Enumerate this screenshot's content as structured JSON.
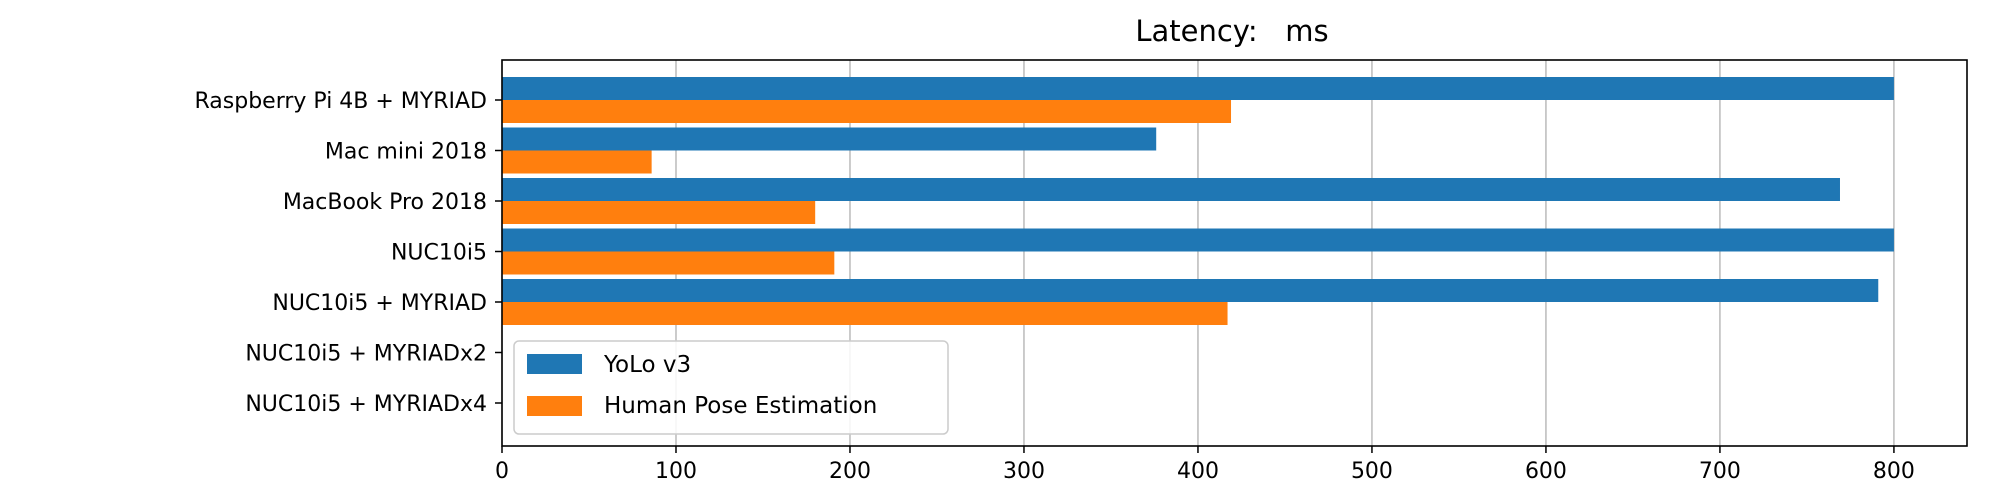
{
  "chart_data": {
    "type": "bar",
    "orientation": "horizontal",
    "title": "Latency:   ms",
    "xlabel": "",
    "ylabel": "",
    "categories": [
      "Raspberry Pi 4B + MYRIAD",
      "Mac mini 2018",
      "MacBook Pro 2018",
      "NUC10i5",
      "NUC10i5 + MYRIAD",
      "NUC10i5 + MYRIADx2",
      "NUC10i5 + MYRIADx4"
    ],
    "series": [
      {
        "name": "YoLo v3",
        "color": "#1f77b4",
        "values": [
          800,
          376,
          769,
          800,
          791,
          null,
          null
        ]
      },
      {
        "name": "Human Pose Estimation",
        "color": "#ff7f0e",
        "values": [
          419,
          86,
          180,
          191,
          417,
          null,
          null
        ]
      }
    ],
    "xlim": [
      0,
      842
    ],
    "xticks": [
      0,
      100,
      200,
      300,
      400,
      500,
      600,
      700,
      800
    ],
    "grid": "vertical",
    "legend_position": "lower-left"
  }
}
